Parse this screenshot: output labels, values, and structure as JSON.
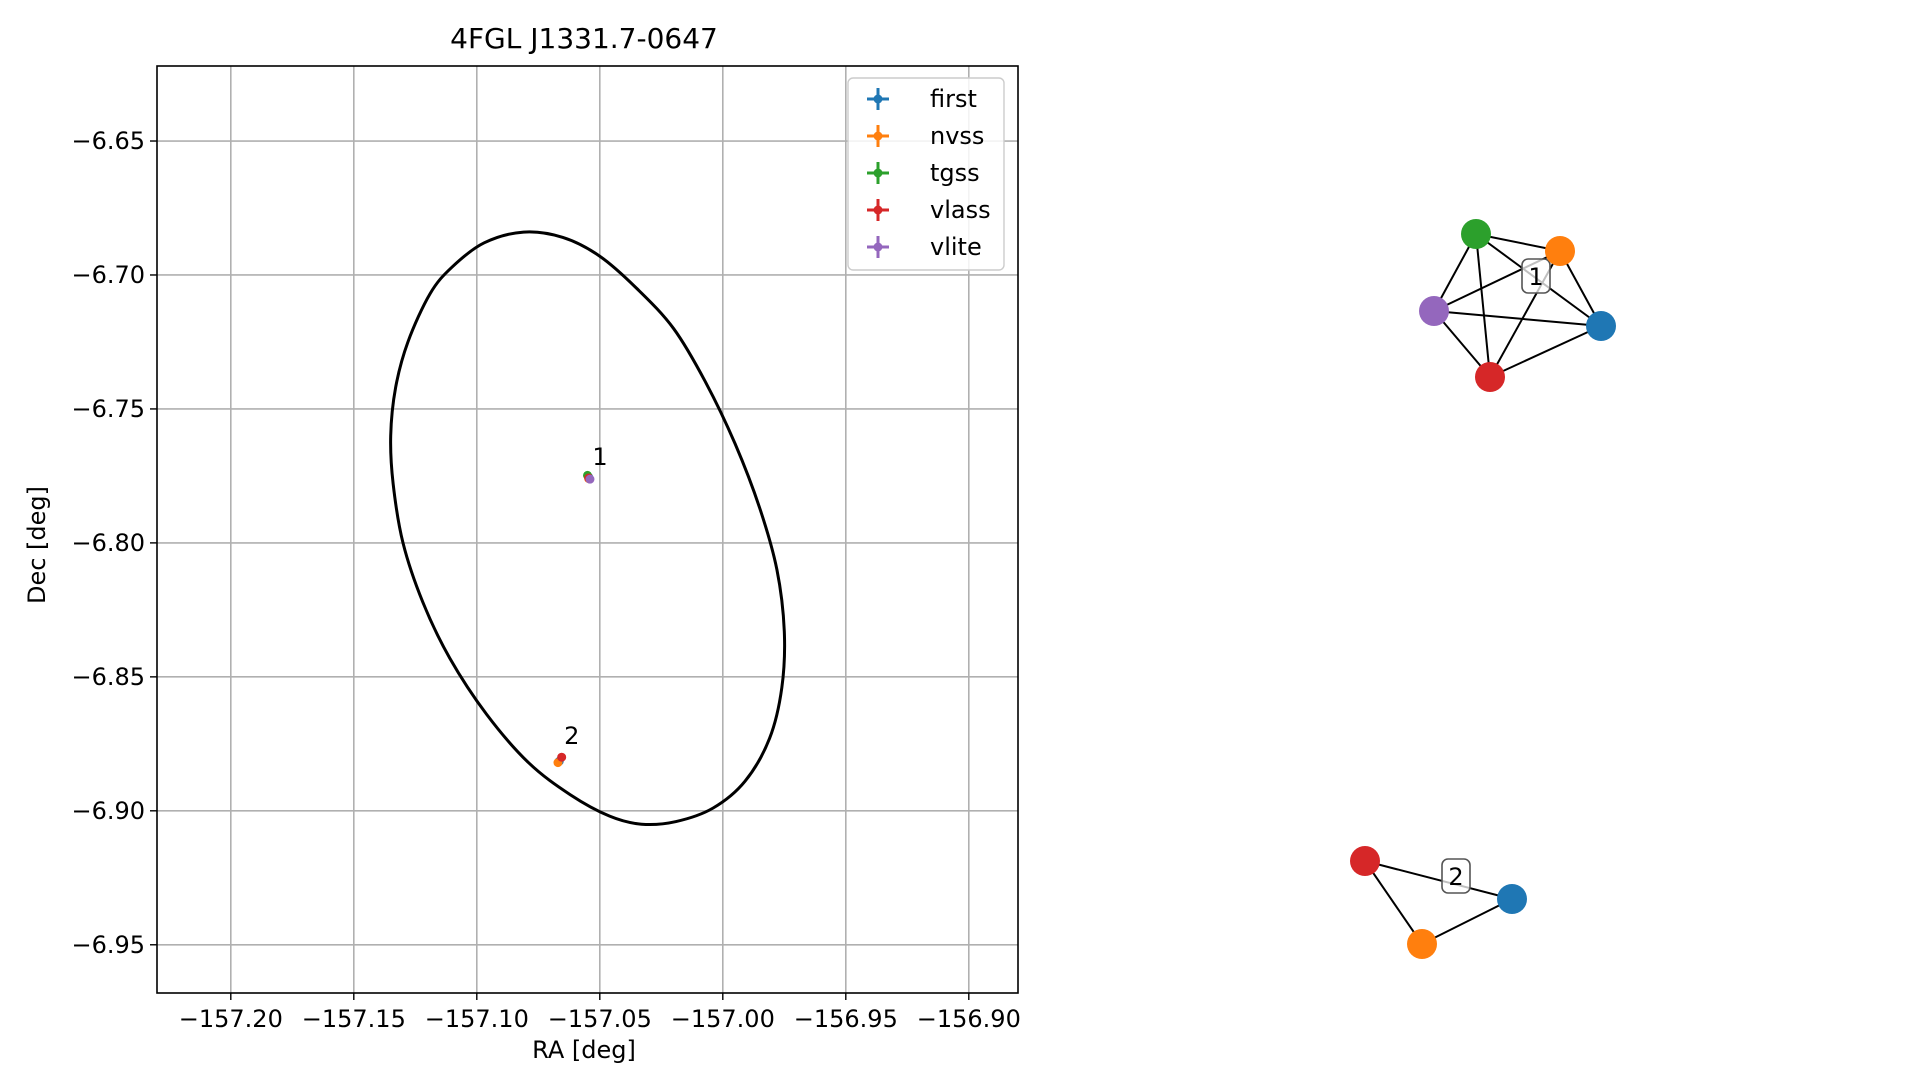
{
  "chart_data": [
    {
      "type": "scatter",
      "title": "4FGL J1331.7-0647",
      "xlabel": "RA [deg]",
      "ylabel": "Dec [deg]",
      "xlim": [
        -157.23,
        -156.88
      ],
      "ylim": [
        -6.968,
        -6.622
      ],
      "grid": true,
      "legend_position": "top-right",
      "x_ticks": [
        -157.2,
        -157.15,
        -157.1,
        -157.05,
        -157.0,
        -156.95,
        -156.9
      ],
      "x_tick_labels": [
        "−157.20",
        "−157.15",
        "−157.10",
        "−157.05",
        "−157.00",
        "−156.95",
        "−156.90"
      ],
      "y_ticks": [
        -6.65,
        -6.7,
        -6.75,
        -6.8,
        -6.85,
        -6.9,
        -6.95
      ],
      "y_tick_labels": [
        "−6.65",
        "−6.70",
        "−6.75",
        "−6.80",
        "−6.85",
        "−6.90",
        "−6.95"
      ],
      "ellipse": {
        "center": [
          -157.0545,
          -6.7945
        ],
        "points": [
          [
            -157.081,
            -6.684
          ],
          [
            -157.065,
            -6.686
          ],
          [
            -157.05,
            -6.693
          ],
          [
            -157.035,
            -6.705
          ],
          [
            -157.02,
            -6.72
          ],
          [
            -157.007,
            -6.74
          ],
          [
            -156.995,
            -6.763
          ],
          [
            -156.985,
            -6.787
          ],
          [
            -156.978,
            -6.81
          ],
          [
            -156.975,
            -6.833
          ],
          [
            -156.976,
            -6.854
          ],
          [
            -156.981,
            -6.873
          ],
          [
            -156.991,
            -6.889
          ],
          [
            -157.004,
            -6.899
          ],
          [
            -157.019,
            -6.904
          ],
          [
            -157.033,
            -6.905
          ],
          [
            -157.046,
            -6.902
          ],
          [
            -157.062,
            -6.894
          ],
          [
            -157.079,
            -6.882
          ],
          [
            -157.096,
            -6.864
          ],
          [
            -157.111,
            -6.843
          ],
          [
            -157.122,
            -6.822
          ],
          [
            -157.13,
            -6.8
          ],
          [
            -157.134,
            -6.778
          ],
          [
            -157.135,
            -6.76
          ],
          [
            -157.133,
            -6.742
          ],
          [
            -157.128,
            -6.725
          ],
          [
            -157.119,
            -6.707
          ],
          [
            -157.11,
            -6.697
          ],
          [
            -157.097,
            -6.688
          ]
        ]
      },
      "series": [
        {
          "name": "first",
          "color": "#1f77b4",
          "points": [
            [
              -157.0545,
              -6.7755
            ],
            [
              -157.0665,
              -6.8815
            ]
          ]
        },
        {
          "name": "nvss",
          "color": "#ff7f0e",
          "points": [
            [
              -157.0545,
              -6.776
            ],
            [
              -157.067,
              -6.882
            ]
          ]
        },
        {
          "name": "tgss",
          "color": "#2ca02c",
          "points": [
            [
              -157.055,
              -6.7748
            ]
          ]
        },
        {
          "name": "vlass",
          "color": "#d62728",
          "points": [
            [
              -157.0545,
              -6.7758
            ],
            [
              -157.0655,
              -6.88
            ]
          ]
        },
        {
          "name": "vlite",
          "color": "#9467bd",
          "points": [
            [
              -157.054,
              -6.7762
            ]
          ]
        }
      ],
      "annotations": [
        {
          "text": "1",
          "x": -157.053,
          "y": -6.771
        },
        {
          "text": "2",
          "x": -157.0645,
          "y": -6.875
        }
      ]
    },
    {
      "type": "network",
      "clusters": [
        {
          "label": "1",
          "nodes": [
            {
              "id": "tgss",
              "color": "#2ca02c"
            },
            {
              "id": "nvss",
              "color": "#ff7f0e"
            },
            {
              "id": "vlite",
              "color": "#9467bd"
            },
            {
              "id": "first",
              "color": "#1f77b4"
            },
            {
              "id": "vlass",
              "color": "#d62728"
            }
          ],
          "edges": [
            [
              "tgss",
              "nvss"
            ],
            [
              "tgss",
              "first"
            ],
            [
              "tgss",
              "vlass"
            ],
            [
              "tgss",
              "vlite"
            ],
            [
              "nvss",
              "first"
            ],
            [
              "nvss",
              "vlite"
            ],
            [
              "nvss",
              "vlass"
            ],
            [
              "vlite",
              "first"
            ],
            [
              "vlite",
              "vlass"
            ],
            [
              "first",
              "vlass"
            ]
          ]
        },
        {
          "label": "2",
          "nodes": [
            {
              "id": "vlass",
              "color": "#d62728"
            },
            {
              "id": "first",
              "color": "#1f77b4"
            },
            {
              "id": "nvss",
              "color": "#ff7f0e"
            }
          ],
          "edges": [
            [
              "vlass",
              "first"
            ],
            [
              "vlass",
              "nvss"
            ],
            [
              "nvss",
              "first"
            ]
          ]
        }
      ]
    }
  ]
}
